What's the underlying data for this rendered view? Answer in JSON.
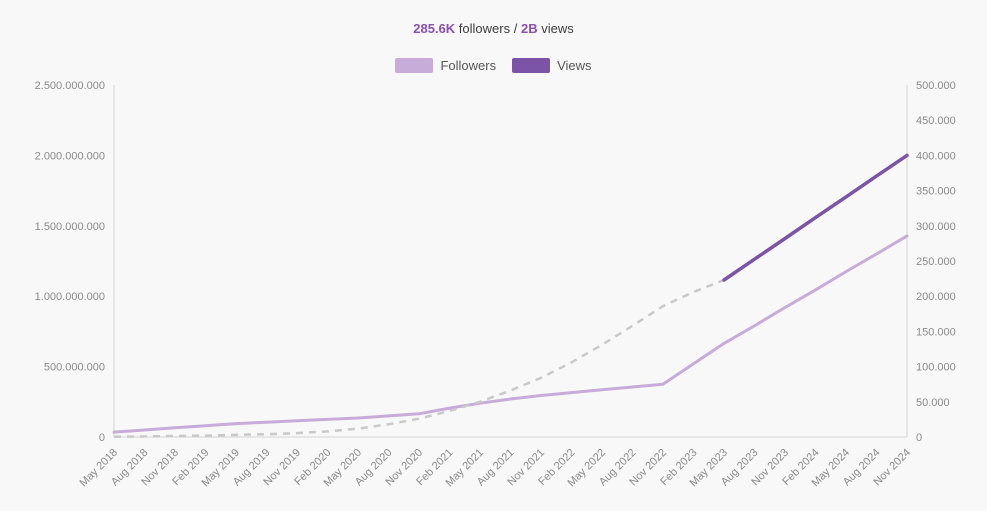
{
  "header": {
    "followers_stat": "285.6K",
    "followers_label": "followers",
    "divider": "/",
    "views_stat": "2B",
    "views_label": "views",
    "stat_color": "#8a4fb0"
  },
  "legend": {
    "items": [
      {
        "label": "Followers",
        "color": "#c7abd9"
      },
      {
        "label": "Views",
        "color": "#7c54a7"
      }
    ]
  },
  "chart_data": {
    "type": "line",
    "title": "285.6K followers / 2B views",
    "legend_position": "top",
    "grid": false,
    "x": [
      "May 2018",
      "Aug 2018",
      "Nov 2018",
      "Feb 2019",
      "May 2019",
      "Aug 2019",
      "Nov 2019",
      "Feb 2020",
      "May 2020",
      "Aug 2020",
      "Nov 2020",
      "Feb 2021",
      "May 2021",
      "Aug 2021",
      "Nov 2021",
      "Feb 2022",
      "May 2022",
      "Aug 2022",
      "Nov 2022",
      "Feb 2023",
      "May 2023",
      "Aug 2023",
      "Nov 2023",
      "Feb 2024",
      "May 2024",
      "Aug 2024",
      "Nov 2024"
    ],
    "series": [
      {
        "name": "Followers",
        "axis": "right",
        "color": "#c7abd9",
        "style": "solid",
        "values": [
          7000,
          10000,
          13000,
          16000,
          19000,
          21000,
          23000,
          25000,
          27000,
          30000,
          33000,
          41000,
          48000,
          54000,
          59000,
          63000,
          67000,
          71000,
          75000,
          104000,
          133000,
          158000,
          184000,
          209000,
          235000,
          260000,
          285600
        ]
      },
      {
        "name": "Views",
        "axis": "left",
        "color": "#7c54a7",
        "style": "dashed-estimate-then-solid",
        "estimate_color": "#c9c9c9",
        "solid_from_index": 20,
        "values": [
          2000000,
          4000000,
          7000000,
          10000000,
          15000000,
          20000000,
          28000000,
          40000000,
          60000000,
          90000000,
          130000000,
          185000000,
          250000000,
          330000000,
          420000000,
          530000000,
          655000000,
          790000000,
          930000000,
          1030000000,
          1115000000,
          1263000000,
          1410000000,
          1558000000,
          1705000000,
          1853000000,
          2000000000
        ]
      }
    ],
    "left_axis": {
      "min": 0,
      "max": 2500000000,
      "tick_labels": [
        "2.500.000.000",
        "2.000.000.000",
        "1.500.000.000",
        "1.000.000.000",
        "500.000.000",
        "0"
      ]
    },
    "right_axis": {
      "min": 0,
      "max": 500000,
      "tick_labels": [
        "500.000",
        "450.000",
        "400.000",
        "350.000",
        "300.000",
        "250.000",
        "200.000",
        "150.000",
        "100.000",
        "50.000",
        "0"
      ]
    },
    "axis_color": "#d5d5d8",
    "tick_text_color": "#8a8a8a"
  }
}
